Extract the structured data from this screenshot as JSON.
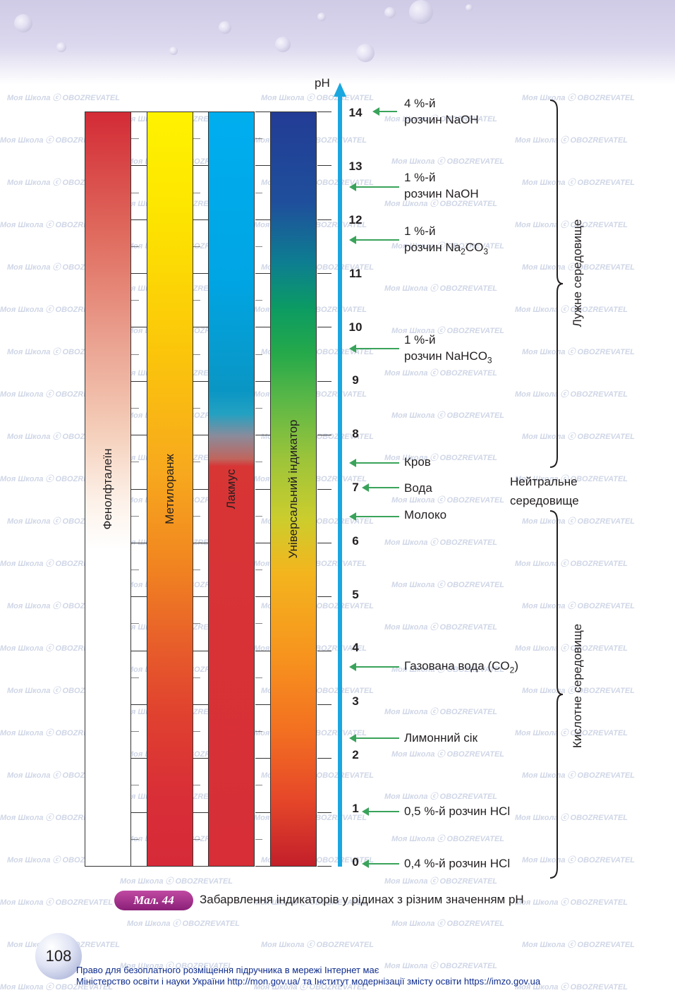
{
  "axis_label": "pH",
  "indicators": [
    "Фенолфталеїн",
    "Метилоранж",
    "Лакмус",
    "Універсальний індикатор"
  ],
  "ph_values": [
    "14",
    "13",
    "12",
    "11",
    "10",
    "9",
    "8",
    "7",
    "6",
    "5",
    "4",
    "3",
    "2",
    "1",
    "0"
  ],
  "solutions": [
    {
      "l1": "4 %-й",
      "l2": "розчин NaOH"
    },
    {
      "l1": "1 %-й",
      "l2": "розчин NaOH"
    },
    {
      "l1": "1 %-й",
      "l2": "розчин Na",
      "s": "2",
      "m": "CO",
      "s2": "3"
    },
    {
      "l1": "1 %-й",
      "l2": "розчин NaHCO",
      "s": "3"
    },
    {
      "l2": "Кров"
    },
    {
      "l2": "Вода"
    },
    {
      "l2": "Молоко"
    },
    {
      "l2": "Газована вода (CO",
      "s": "2",
      "m": ")"
    },
    {
      "l2": "Лимонний сік"
    },
    {
      "l2": "0,5 %-й розчин HCl"
    },
    {
      "l2": "0,4 %-й розчин HCl"
    }
  ],
  "environments": {
    "alkaline": "Лужне середовище",
    "neutral_1": "Нейтральне",
    "neutral_2": "середовище",
    "acidic": "Кислотне середовище"
  },
  "caption": {
    "badge": "Мал. 44",
    "text": "Забарвлення індикаторів у рідинах з різним значенням pH"
  },
  "page_number": "108",
  "footer": {
    "line1": "Право для безоплатного розміщення підручника в мережі Інтернет має",
    "line2": "Міністерство освіти і науки України http://mon.gov.ua/ та Інститут модернізації змісту освіти https://imzo.gov.ua"
  },
  "watermark": {
    "brand": "Моя Школа",
    "partner": "OBOZREVATEL"
  },
  "colors": {
    "axis": "#1aa7e0",
    "arrow": "#3aa35b",
    "badge": "#a0308c",
    "footer": "#0d2b8c"
  }
}
